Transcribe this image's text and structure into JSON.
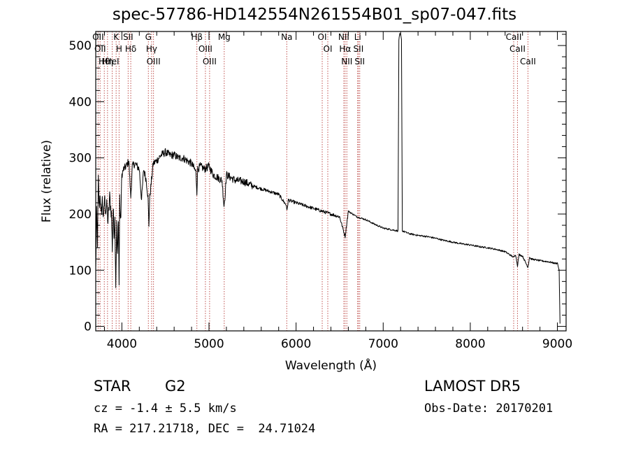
{
  "figure": {
    "title": "spec-57786-HD142554N261554B01_sp07-047.fits",
    "object_class": "STAR",
    "object_subclass": "G2",
    "survey": "LAMOST DR5",
    "cz_text": "cz = -1.4 ± 5.5 km/s",
    "obs_date": "Obs-Date: 20170201",
    "coords": "RA = 217.21718, DEC =  24.71024"
  },
  "chart_data": {
    "type": "line",
    "title": "spec-57786-HD142554N261554B01_sp07-047.fits",
    "xlabel": "Wavelength (Å)",
    "ylabel": "Flux (relative)",
    "xlim": [
      3700,
      9100
    ],
    "ylim": [
      -8,
      525
    ],
    "xticks": [
      4000,
      5000,
      6000,
      7000,
      8000,
      9000
    ],
    "yticks": [
      0,
      100,
      200,
      300,
      400,
      500
    ],
    "grid": false,
    "colors": {
      "spectrum": "#000000",
      "lines": "#c0504d",
      "axes": "#000000"
    },
    "series": [
      {
        "x": [
          3700,
          3710,
          3720,
          3730,
          3740,
          3750,
          3760,
          3775,
          3790,
          3800,
          3815,
          3830,
          3840,
          3860,
          3880,
          3890,
          3900,
          3910,
          3920,
          3930,
          3940,
          3950,
          3960,
          3968,
          3975,
          3985,
          4000,
          4020,
          4050,
          4080,
          4102,
          4120,
          4150,
          4200,
          4226,
          4250,
          4280,
          4300,
          4310,
          4320,
          4340,
          4360,
          4400,
          4450,
          4500,
          4550,
          4600,
          4650,
          4700,
          4750,
          4800,
          4850,
          4861,
          4870,
          4900,
          4950,
          5000,
          5050,
          5100,
          5150,
          5172,
          5183,
          5200,
          5250,
          5300,
          5400,
          5500,
          5600,
          5700,
          5800,
          5890,
          5896,
          5910,
          6000,
          6100,
          6200,
          6300,
          6400,
          6500,
          6563,
          6600,
          6700,
          6800,
          6900,
          7000,
          7100,
          7170,
          7180,
          7190,
          7200,
          7210,
          7220,
          7300,
          7400,
          7500,
          7600,
          7700,
          7800,
          7900,
          8000,
          8100,
          8200,
          8300,
          8400,
          8498,
          8520,
          8542,
          8560,
          8600,
          8662,
          8680,
          8700,
          8800,
          8900,
          8980,
          9000,
          9020,
          9030
        ],
        "y": [
          100,
          200,
          150,
          260,
          210,
          240,
          195,
          225,
          190,
          230,
          205,
          215,
          185,
          230,
          200,
          140,
          210,
          170,
          190,
          75,
          180,
          120,
          200,
          75,
          230,
          180,
          270,
          280,
          285,
          295,
          230,
          285,
          290,
          280,
          225,
          280,
          260,
          230,
          180,
          230,
          260,
          290,
          295,
          305,
          310,
          305,
          305,
          300,
          300,
          295,
          290,
          275,
          240,
          280,
          285,
          280,
          285,
          270,
          265,
          260,
          215,
          230,
          270,
          265,
          260,
          258,
          250,
          245,
          240,
          235,
          215,
          205,
          225,
          220,
          215,
          210,
          205,
          200,
          195,
          160,
          205,
          195,
          190,
          182,
          175,
          172,
          170,
          510,
          520,
          520,
          510,
          170,
          165,
          162,
          160,
          157,
          153,
          150,
          147,
          145,
          142,
          140,
          137,
          133,
          123,
          128,
          108,
          128,
          125,
          105,
          123,
          120,
          117,
          115,
          112,
          113,
          100,
          5
        ]
      }
    ],
    "spectral_lines": [
      {
        "wavelength": 3727,
        "label": "OII"
      },
      {
        "wavelength": 3750,
        "label": "OII"
      },
      {
        "wavelength": 3798,
        "label": "Hθ"
      },
      {
        "wavelength": 3835,
        "label": "Hη"
      },
      {
        "wavelength": 3889,
        "label": "HeI"
      },
      {
        "wavelength": 3934,
        "label": "K"
      },
      {
        "wavelength": 3968,
        "label": "H"
      },
      {
        "wavelength": 4072,
        "label": "SII"
      },
      {
        "wavelength": 4102,
        "label": "Hδ"
      },
      {
        "wavelength": 4304,
        "label": "G"
      },
      {
        "wavelength": 4341,
        "label": "Hγ"
      },
      {
        "wavelength": 4363,
        "label": "OIII"
      },
      {
        "wavelength": 4861,
        "label": "Hβ"
      },
      {
        "wavelength": 4959,
        "label": "OIII"
      },
      {
        "wavelength": 5007,
        "label": "OIII"
      },
      {
        "wavelength": 5175,
        "label": "Mg"
      },
      {
        "wavelength": 5893,
        "label": "Na"
      },
      {
        "wavelength": 6300,
        "label": "OI"
      },
      {
        "wavelength": 6364,
        "label": "OI"
      },
      {
        "wavelength": 6548,
        "label": "NII"
      },
      {
        "wavelength": 6563,
        "label": "Hα"
      },
      {
        "wavelength": 6583,
        "label": "NII"
      },
      {
        "wavelength": 6707,
        "label": "Li"
      },
      {
        "wavelength": 6716,
        "label": "SII"
      },
      {
        "wavelength": 6731,
        "label": "SII"
      },
      {
        "wavelength": 8498,
        "label": "CaII"
      },
      {
        "wavelength": 8542,
        "label": "CaII"
      },
      {
        "wavelength": 8662,
        "label": "CaII"
      }
    ]
  }
}
